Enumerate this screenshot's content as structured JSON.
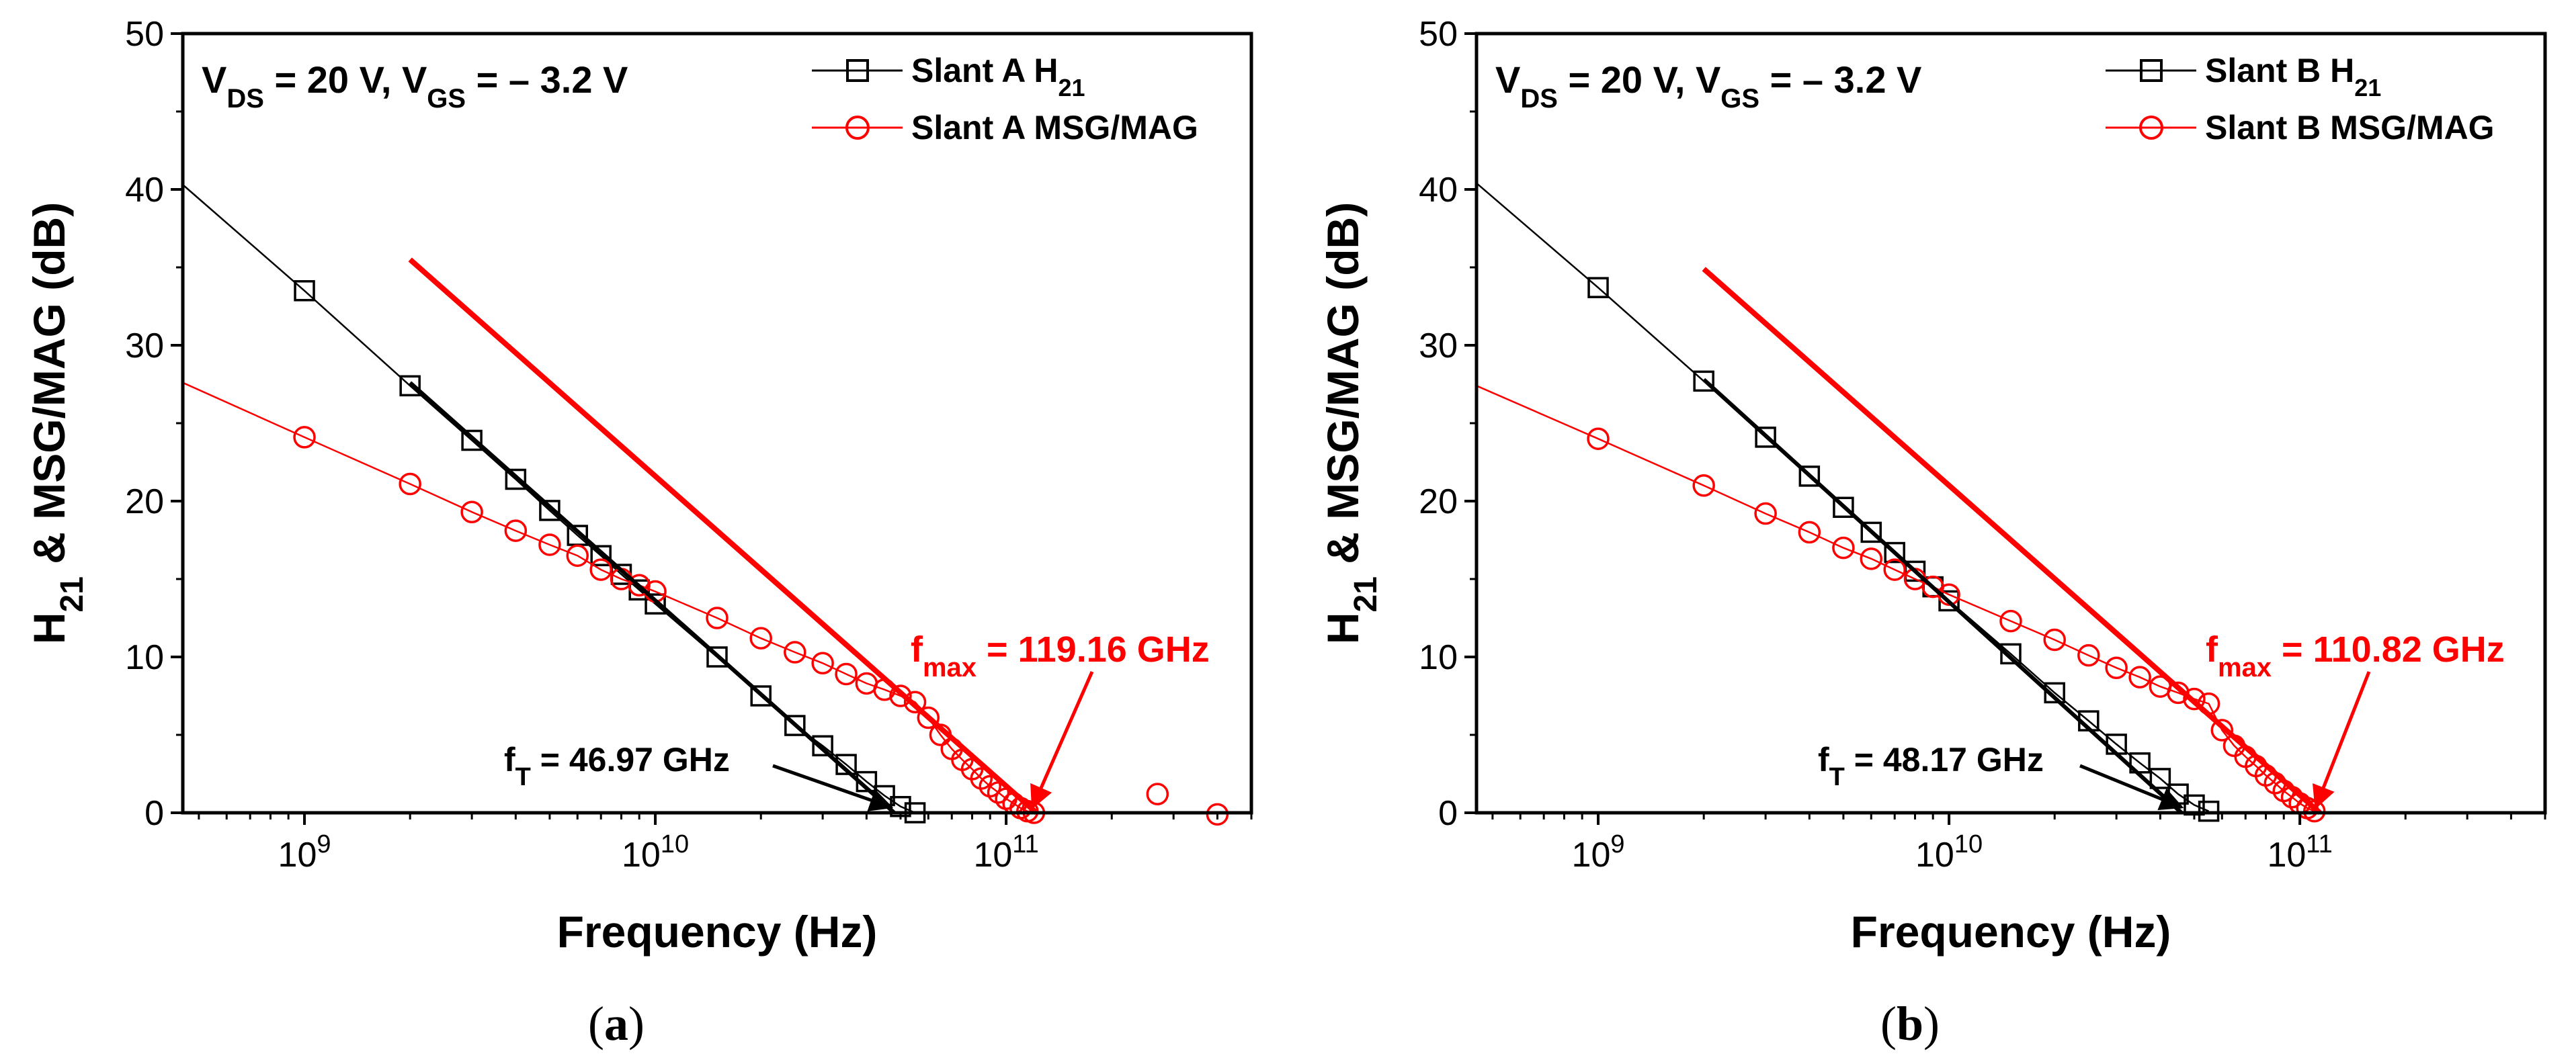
{
  "colors": {
    "h21": "#000000",
    "msg": "#ff0000",
    "axis": "#000000",
    "background": "#ffffff"
  },
  "chart_data": [
    {
      "panel": "(a)",
      "caption_letter": "a",
      "type": "line",
      "x_scale": "log",
      "xlabel": "Frequency (Hz)",
      "ylabel_parts": {
        "base": "H",
        "sub": "21",
        "rest": " & MSG/MAG (dB)"
      },
      "xlim": [
        450000000,
        500000000000
      ],
      "ylim": [
        0,
        50
      ],
      "y_ticks": [
        0,
        10,
        20,
        30,
        40,
        50
      ],
      "x_tick_labels": [
        {
          "value": 1000000000,
          "base": "10",
          "exp": "9"
        },
        {
          "value": 10000000000,
          "base": "10",
          "exp": "10"
        },
        {
          "value": 100000000000,
          "base": "10",
          "exp": "11"
        }
      ],
      "condition": {
        "v1": "V",
        "s1": "DS",
        "t1": " = 20 V, ",
        "v2": "V",
        "s2": "GS",
        "t2": " = – 3.2 V"
      },
      "legend": [
        {
          "series": "h21",
          "base": "Slant A H",
          "sub": "21"
        },
        {
          "series": "msg",
          "base": "Slant A MSG/MAG",
          "sub": ""
        }
      ],
      "series": [
        {
          "name": "Slant A H21",
          "key": "h21",
          "marker": "square",
          "color": "#000000",
          "curve_x": [
            450000000,
            1000000000,
            2000000000,
            3000000000,
            4000000000,
            5000000000,
            6000000000,
            7000000000,
            8000000000,
            9000000000,
            10000000000,
            15000000000,
            20000000000,
            25000000000,
            30000000000,
            35000000000,
            40000000000,
            45000000000,
            50000000000,
            55000000000
          ],
          "curve_y": [
            40.3,
            33.5,
            27.4,
            23.9,
            21.4,
            19.4,
            17.8,
            16.5,
            15.3,
            14.3,
            13.4,
            10.0,
            7.5,
            5.6,
            4.3,
            3.1,
            2.0,
            1.1,
            0.4,
            0.0
          ],
          "marker_x": [
            1000000000,
            2000000000,
            3000000000,
            4000000000,
            5000000000,
            6000000000,
            7000000000,
            8000000000,
            9000000000,
            10000000000,
            15000000000,
            20000000000,
            25000000000,
            30000000000,
            35000000000,
            40000000000,
            45000000000,
            50000000000,
            55000000000
          ],
          "marker_y": [
            33.5,
            27.4,
            23.9,
            21.4,
            19.4,
            17.8,
            16.5,
            15.3,
            14.3,
            13.4,
            10.0,
            7.5,
            5.6,
            4.3,
            3.1,
            2.0,
            1.1,
            0.4,
            0.0
          ]
        },
        {
          "name": "Slant A MSG/MAG",
          "key": "msg",
          "marker": "circle",
          "color": "#ff0000",
          "curve_x": [
            450000000,
            1000000000,
            2000000000,
            3000000000,
            4000000000,
            5000000000,
            6000000000,
            7000000000,
            8000000000,
            9000000000,
            10000000000,
            15000000000,
            20000000000,
            25000000000,
            30000000000,
            35000000000,
            40000000000,
            45000000000,
            50000000000,
            55000000000,
            60000000000,
            65000000000,
            70000000000,
            75000000000,
            80000000000,
            85000000000,
            90000000000,
            95000000000,
            100000000000,
            105000000000,
            110000000000,
            115000000000,
            120000000000
          ],
          "curve_y": [
            27.6,
            24.1,
            21.1,
            19.3,
            18.1,
            17.2,
            16.5,
            15.6,
            15.0,
            14.6,
            14.2,
            12.5,
            11.2,
            10.3,
            9.6,
            8.9,
            8.3,
            7.9,
            7.5,
            7.1,
            6.1,
            5.0,
            4.1,
            3.4,
            2.8,
            2.2,
            1.7,
            1.3,
            0.9,
            0.6,
            0.3,
            0.1,
            0.0
          ],
          "marker_x": [
            1000000000,
            2000000000,
            3000000000,
            4000000000,
            5000000000,
            6000000000,
            7000000000,
            8000000000,
            9000000000,
            10000000000,
            15000000000,
            20000000000,
            25000000000,
            30000000000,
            35000000000,
            40000000000,
            45000000000,
            50000000000,
            55000000000,
            60000000000,
            65000000000,
            70000000000,
            75000000000,
            80000000000,
            85000000000,
            90000000000,
            95000000000,
            100000000000,
            105000000000,
            110000000000,
            115000000000,
            120000000000
          ],
          "marker_y": [
            24.1,
            21.1,
            19.3,
            18.1,
            17.2,
            16.5,
            15.6,
            15.0,
            14.6,
            14.2,
            12.5,
            11.2,
            10.3,
            9.6,
            8.9,
            8.3,
            7.9,
            7.5,
            7.1,
            6.1,
            5.0,
            4.1,
            3.4,
            2.8,
            2.2,
            1.7,
            1.3,
            0.9,
            0.6,
            0.3,
            0.1,
            0.0
          ],
          "extra_markers_x": [
            270000000000,
            400000000000
          ],
          "extra_markers_y": [
            1.2,
            -0.1
          ]
        }
      ],
      "fits": [
        {
          "key": "h21",
          "x": [
            2000000000,
            48000000000
          ],
          "y": [
            27.6,
            0.0
          ],
          "width": 6
        },
        {
          "key": "msg",
          "x": [
            2000000000,
            122000000000
          ],
          "y": [
            35.5,
            0.0
          ],
          "width": 8
        }
      ],
      "annotations": {
        "ft": {
          "base": "f",
          "sub": "T",
          "rest": " = 46.97 GHz",
          "arrow_to": [
            47000000000,
            0.1
          ]
        },
        "fmax": {
          "base": "f",
          "sub": "max",
          "rest": " = 119.16 GHz",
          "arrow_to": [
            119000000000,
            0.1
          ]
        }
      }
    },
    {
      "panel": "(b)",
      "caption_letter": "b",
      "type": "line",
      "x_scale": "log",
      "xlabel": "Frequency (Hz)",
      "ylabel_parts": {
        "base": "H",
        "sub": "21",
        "rest": " & MSG/MAG (dB)"
      },
      "xlim": [
        450000000,
        500000000000
      ],
      "ylim": [
        0,
        50
      ],
      "y_ticks": [
        0,
        10,
        20,
        30,
        40,
        50
      ],
      "x_tick_labels": [
        {
          "value": 1000000000,
          "base": "10",
          "exp": "9"
        },
        {
          "value": 10000000000,
          "base": "10",
          "exp": "10"
        },
        {
          "value": 100000000000,
          "base": "10",
          "exp": "11"
        }
      ],
      "condition": {
        "v1": "V",
        "s1": "DS",
        "t1": " = 20 V, ",
        "v2": "V",
        "s2": "GS",
        "t2": " = – 3.2 V"
      },
      "legend": [
        {
          "series": "h21",
          "base": "Slant B H",
          "sub": "21"
        },
        {
          "series": "msg",
          "base": "Slant B MSG/MAG",
          "sub": ""
        }
      ],
      "series": [
        {
          "name": "Slant B H21",
          "key": "h21",
          "marker": "square",
          "color": "#000000",
          "curve_x": [
            450000000,
            1000000000,
            2000000000,
            3000000000,
            4000000000,
            5000000000,
            6000000000,
            7000000000,
            8000000000,
            9000000000,
            10000000000,
            15000000000,
            20000000000,
            25000000000,
            30000000000,
            35000000000,
            40000000000,
            45000000000,
            50000000000,
            55000000000
          ],
          "curve_y": [
            40.4,
            33.7,
            27.7,
            24.1,
            21.6,
            19.6,
            18.0,
            16.7,
            15.5,
            14.5,
            13.6,
            10.2,
            7.7,
            5.9,
            4.4,
            3.2,
            2.2,
            1.2,
            0.5,
            0.1
          ],
          "marker_x": [
            1000000000,
            2000000000,
            3000000000,
            4000000000,
            5000000000,
            6000000000,
            7000000000,
            8000000000,
            9000000000,
            10000000000,
            15000000000,
            20000000000,
            25000000000,
            30000000000,
            35000000000,
            40000000000,
            45000000000,
            50000000000,
            55000000000
          ],
          "marker_y": [
            33.7,
            27.7,
            24.1,
            21.6,
            19.6,
            18.0,
            16.7,
            15.5,
            14.5,
            13.6,
            10.2,
            7.7,
            5.9,
            4.4,
            3.2,
            2.2,
            1.2,
            0.5,
            0.1
          ]
        },
        {
          "name": "Slant B MSG/MAG",
          "key": "msg",
          "marker": "circle",
          "color": "#ff0000",
          "curve_x": [
            450000000,
            1000000000,
            2000000000,
            3000000000,
            4000000000,
            5000000000,
            6000000000,
            7000000000,
            8000000000,
            9000000000,
            10000000000,
            15000000000,
            20000000000,
            25000000000,
            30000000000,
            35000000000,
            40000000000,
            45000000000,
            50000000000,
            55000000000,
            60000000000,
            65000000000,
            70000000000,
            75000000000,
            80000000000,
            85000000000,
            90000000000,
            95000000000,
            100000000000,
            105000000000,
            110000000000
          ],
          "curve_y": [
            27.4,
            24.0,
            21.0,
            19.2,
            18.0,
            17.0,
            16.3,
            15.6,
            15.0,
            14.5,
            14.0,
            12.3,
            11.1,
            10.1,
            9.3,
            8.7,
            8.1,
            7.7,
            7.3,
            7.0,
            5.3,
            4.3,
            3.6,
            3.0,
            2.4,
            1.9,
            1.4,
            1.0,
            0.6,
            0.3,
            0.1
          ],
          "marker_x": [
            1000000000,
            2000000000,
            3000000000,
            4000000000,
            5000000000,
            6000000000,
            7000000000,
            8000000000,
            9000000000,
            10000000000,
            15000000000,
            20000000000,
            25000000000,
            30000000000,
            35000000000,
            40000000000,
            45000000000,
            50000000000,
            55000000000,
            60000000000,
            65000000000,
            70000000000,
            75000000000,
            80000000000,
            85000000000,
            90000000000,
            95000000000,
            100000000000,
            105000000000,
            110000000000
          ],
          "marker_y": [
            24.0,
            21.0,
            19.2,
            18.0,
            17.0,
            16.3,
            15.6,
            15.0,
            14.5,
            14.0,
            12.3,
            11.1,
            10.1,
            9.3,
            8.7,
            8.1,
            7.7,
            7.3,
            7.0,
            5.3,
            4.3,
            3.6,
            3.0,
            2.4,
            1.9,
            1.4,
            1.0,
            0.6,
            0.3,
            0.1
          ],
          "extra_markers_x": [],
          "extra_markers_y": []
        }
      ],
      "fits": [
        {
          "key": "h21",
          "x": [
            2000000000,
            46000000000
          ],
          "y": [
            27.8,
            0.0
          ],
          "width": 6
        },
        {
          "key": "msg",
          "x": [
            2000000000,
            114000000000
          ],
          "y": [
            34.9,
            0.0
          ],
          "width": 8
        }
      ],
      "annotations": {
        "ft": {
          "base": "f",
          "sub": "T",
          "rest": " = 48.17 GHz",
          "arrow_to": [
            46000000000,
            0.1
          ]
        },
        "fmax": {
          "base": "f",
          "sub": "max",
          "rest": " = 110.82 GHz",
          "arrow_to": [
            111000000000,
            0.1
          ]
        }
      }
    }
  ]
}
